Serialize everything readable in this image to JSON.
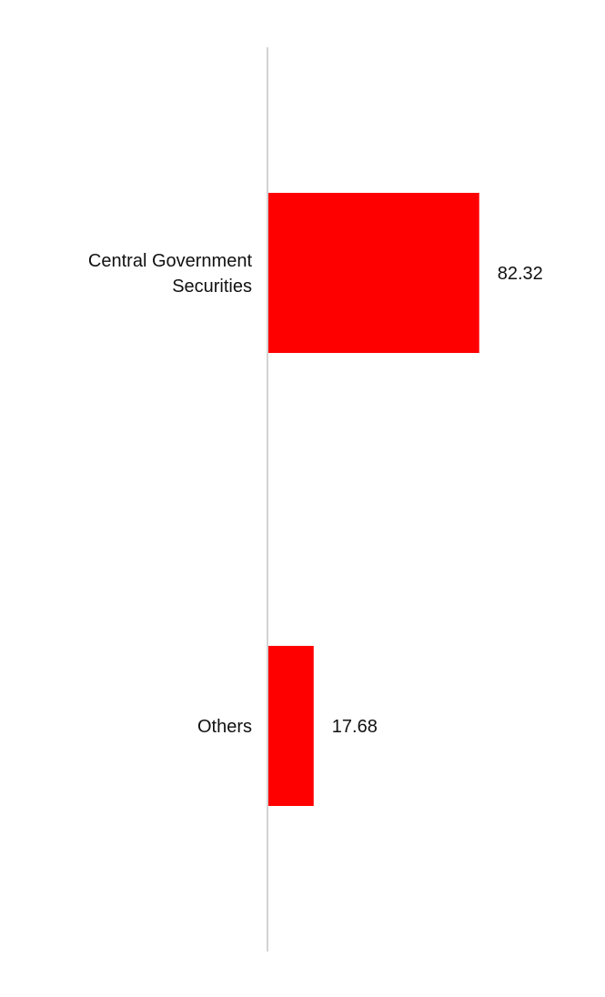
{
  "chart_data": {
    "type": "bar",
    "orientation": "horizontal",
    "categories": [
      [
        "Central Government",
        "Securities"
      ],
      [
        "Others"
      ]
    ],
    "values": [
      82.32,
      17.68
    ],
    "value_labels": [
      "82.32",
      "17.68"
    ],
    "title": "",
    "xlabel": "",
    "ylabel": "",
    "xlim": [
      0,
      100
    ],
    "grid": false,
    "legend": "none",
    "colors": {
      "bar": "#ff0000",
      "axis": "#d3d3d3",
      "text": "#111111"
    }
  }
}
